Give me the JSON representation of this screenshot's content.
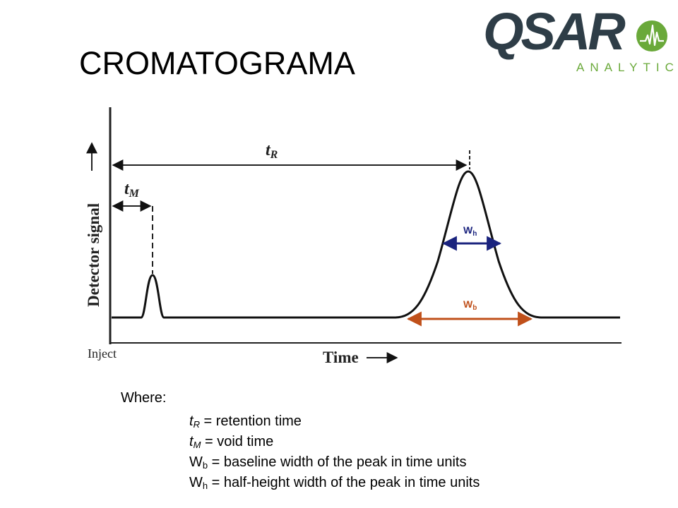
{
  "title": "CROMATOGRAMA",
  "logo": {
    "word": "QSAR",
    "tagline": "ANALYTICS",
    "colors": {
      "text": "#2e3d47",
      "accent": "#6aa93a"
    }
  },
  "diagram": {
    "y_axis_label": "Detector signal",
    "x_axis_label": "Time",
    "inject_label": "Inject",
    "tR_label": {
      "main": "t",
      "sub": "R"
    },
    "tM_label": {
      "main": "t",
      "sub": "M"
    },
    "wh_label": {
      "main": "W",
      "sub": "h"
    },
    "wb_label": {
      "main": "W",
      "sub": "b"
    },
    "colors": {
      "wh": "#1a237e",
      "wb": "#c0501a",
      "curve": "#111111"
    }
  },
  "legend": {
    "heading": "Where:",
    "items": [
      {
        "symbol": "t",
        "sub": "R",
        "text": " = retention time"
      },
      {
        "symbol": "t",
        "sub": "M",
        "text": " = void time"
      },
      {
        "symbol": "W",
        "sub": "b",
        "text": " = baseline width of the peak in time units"
      },
      {
        "symbol": "W",
        "sub": "h",
        "text": " = half-height width of the peak in time units"
      }
    ]
  }
}
